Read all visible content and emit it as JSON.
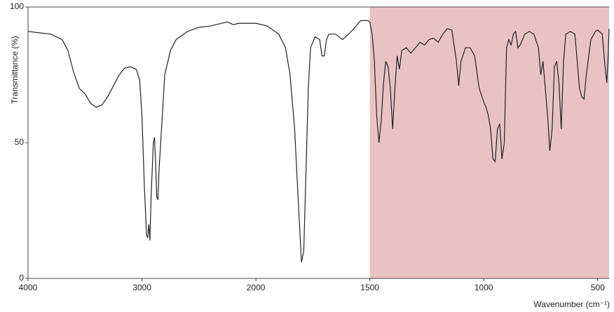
{
  "chart_data": {
    "type": "line",
    "x_label": "Wavenumber (cm⁻¹)",
    "y_label": "Transmittance (%)",
    "xlim": [
      4000,
      450
    ],
    "xticks": [
      4000,
      3000,
      2000,
      1500,
      1000,
      500
    ],
    "x_scale_break": 2000,
    "ylim": [
      0,
      100
    ],
    "yticks": [
      0,
      50,
      100
    ],
    "shaded_region": {
      "from": 1500,
      "to": 450,
      "color": "#e9c3c4"
    },
    "series": [
      {
        "color": "#222222",
        "x": [
          4000,
          3900,
          3800,
          3700,
          3650,
          3600,
          3550,
          3500,
          3450,
          3400,
          3350,
          3300,
          3250,
          3200,
          3150,
          3100,
          3050,
          3020,
          3000,
          2980,
          2960,
          2950,
          2940,
          2930,
          2920,
          2900,
          2890,
          2880,
          2870,
          2860,
          2850,
          2800,
          2750,
          2700,
          2600,
          2500,
          2400,
          2300,
          2250,
          2200,
          2150,
          2100,
          2000,
          1950,
          1900,
          1870,
          1850,
          1830,
          1815,
          1800,
          1790,
          1780,
          1770,
          1760,
          1740,
          1720,
          1710,
          1700,
          1690,
          1680,
          1650,
          1620,
          1600,
          1570,
          1540,
          1510,
          1500,
          1490,
          1480,
          1470,
          1460,
          1450,
          1440,
          1430,
          1420,
          1410,
          1400,
          1390,
          1380,
          1370,
          1360,
          1340,
          1320,
          1300,
          1280,
          1260,
          1240,
          1220,
          1200,
          1180,
          1160,
          1140,
          1120,
          1110,
          1100,
          1080,
          1060,
          1040,
          1020,
          1000,
          990,
          980,
          970,
          960,
          950,
          940,
          930,
          920,
          910,
          900,
          890,
          880,
          870,
          860,
          850,
          840,
          820,
          800,
          780,
          760,
          750,
          740,
          720,
          710,
          700,
          690,
          680,
          670,
          660,
          650,
          640,
          620,
          600,
          590,
          580,
          570,
          560,
          550,
          530,
          510,
          500,
          480,
          470,
          460,
          455,
          450
        ],
        "values": [
          91,
          90.5,
          90,
          88,
          84,
          76,
          70,
          68,
          64.5,
          63,
          64,
          67,
          71,
          75,
          77.5,
          78,
          77,
          73,
          60,
          35,
          16,
          15,
          20,
          14,
          30,
          50,
          52,
          42,
          30,
          29,
          40,
          75,
          84,
          88,
          91,
          92.5,
          93,
          94,
          94.5,
          93.5,
          94,
          94,
          94,
          93,
          90,
          85,
          75,
          55,
          30,
          6,
          10,
          40,
          70,
          85,
          89,
          88,
          82,
          82,
          88,
          90,
          90,
          88,
          89.5,
          92,
          95,
          95,
          94.5,
          90,
          80,
          60,
          50,
          58,
          72,
          80,
          78,
          70,
          55,
          70,
          82,
          77,
          84,
          85,
          83,
          85,
          87,
          86,
          88,
          88.5,
          87,
          90,
          92,
          91.5,
          80,
          71,
          80,
          85,
          85,
          82,
          70,
          65,
          63,
          60,
          55,
          44,
          43,
          55,
          57,
          44,
          50,
          85,
          88,
          86,
          90,
          91,
          85,
          86,
          90,
          91,
          90,
          85,
          75,
          80,
          60,
          47,
          55,
          78,
          80,
          72,
          55,
          80,
          90,
          91,
          90,
          80,
          70,
          67,
          66,
          75,
          88,
          91,
          91.5,
          90,
          80,
          72,
          80,
          92
        ]
      }
    ]
  }
}
